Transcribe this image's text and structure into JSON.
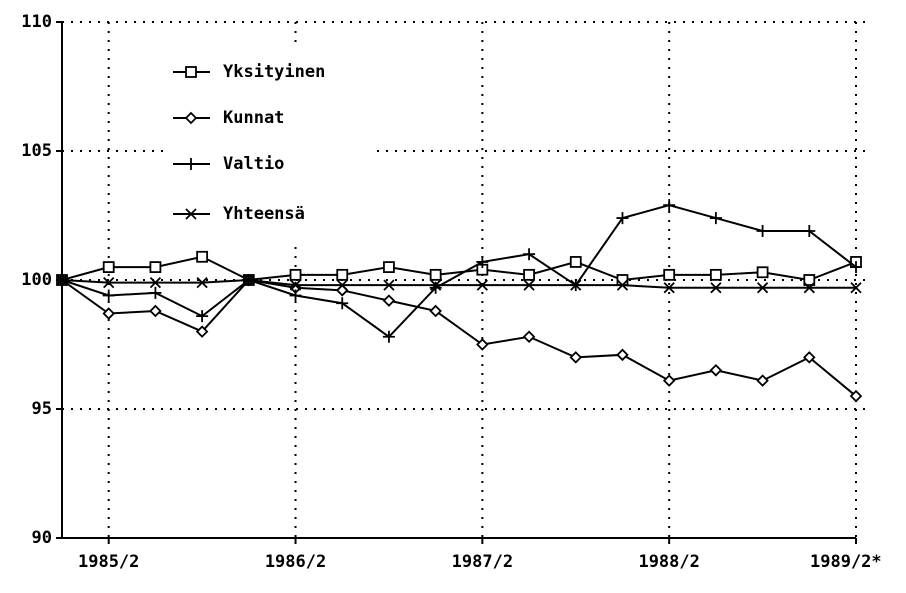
{
  "chart_data": {
    "type": "line",
    "categories": [
      null,
      "1985/2",
      null,
      null,
      null,
      "1986/2",
      null,
      null,
      null,
      "1987/2",
      null,
      null,
      null,
      "1988/2",
      null,
      null,
      null,
      "1989/2*"
    ],
    "series": [
      {
        "name": "Yksityinen",
        "color": "#000000",
        "marker": "square",
        "values": [
          100,
          100.5,
          100.5,
          100.9,
          100,
          100.2,
          100.2,
          100.5,
          100.2,
          100.4,
          100.2,
          100.7,
          100,
          100.2,
          100.2,
          100.3,
          100,
          100.7
        ]
      },
      {
        "name": "Kunnat",
        "color": "#000000",
        "marker": "diamond",
        "values": [
          100,
          98.7,
          98.8,
          98,
          100,
          99.7,
          99.6,
          99.2,
          98.8,
          97.5,
          97.8,
          97,
          97.1,
          96.1,
          96.5,
          96.1,
          97,
          95.5
        ]
      },
      {
        "name": "Valtio",
        "color": "#000000",
        "marker": "plus",
        "values": [
          100,
          99.4,
          99.5,
          98.6,
          100,
          99.4,
          99.1,
          97.8,
          99.7,
          100.7,
          101,
          99.8,
          102.4,
          102.9,
          102.4,
          101.9,
          101.9,
          100.5
        ]
      },
      {
        "name": "Yhteensä",
        "color": "#000000",
        "marker": "cross",
        "values": [
          100,
          99.9,
          99.9,
          99.9,
          100,
          99.8,
          99.8,
          99.8,
          99.8,
          99.8,
          99.8,
          99.8,
          99.8,
          99.7,
          99.7,
          99.7,
          99.7,
          99.7
        ]
      }
    ],
    "ylim": [
      90,
      110
    ],
    "yticks": [
      90,
      95,
      100,
      105,
      110
    ],
    "grid": true,
    "legend": "upper left"
  }
}
